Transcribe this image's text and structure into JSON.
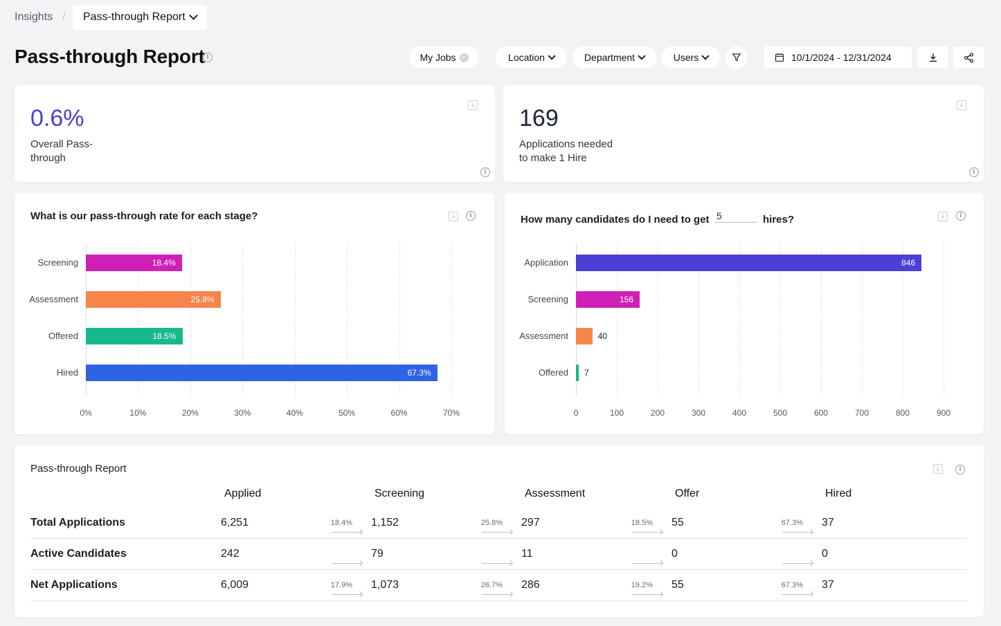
{
  "breadcrumb": {
    "root": "Insights",
    "separator": "/",
    "current": "Pass-through Report"
  },
  "page": {
    "title": "Pass-through Report"
  },
  "filters": {
    "my_jobs": "My Jobs",
    "location": "Location",
    "department": "Department",
    "users": "Users",
    "date_range": "10/1/2024 - 12/31/2024"
  },
  "kpis": [
    {
      "value": "0.6%",
      "label_line1": "Overall Pass-",
      "label_line2": "through",
      "color": "#4a3fd6"
    },
    {
      "value": "169",
      "label_line1": "Applications needed",
      "label_line2": "to make 1 Hire",
      "color": "#1d2433"
    }
  ],
  "chart_left": {
    "title": "What is our pass-through rate for each stage?"
  },
  "chart_right": {
    "title_prefix": "How many candidates do I need to get",
    "hires_value": "5",
    "title_suffix": "hires?"
  },
  "chart_data": [
    {
      "type": "bar",
      "orientation": "horizontal",
      "title": "What is our pass-through rate for each stage?",
      "categories": [
        "Screening",
        "Assessment",
        "Offered",
        "Hired"
      ],
      "values": [
        18.4,
        25.8,
        18.5,
        67.3
      ],
      "value_labels": [
        "18.4%",
        "25.8%",
        "18.5%",
        "67.3%"
      ],
      "colors": [
        "#d01fb6",
        "#f5854a",
        "#17b88c",
        "#2f63e6"
      ],
      "xlim": [
        0,
        70
      ],
      "xticks": [
        "0%",
        "10%",
        "20%",
        "30%",
        "40%",
        "50%",
        "60%",
        "70%"
      ],
      "grid": true
    },
    {
      "type": "bar",
      "orientation": "horizontal",
      "title": "How many candidates do I need to get 5 hires?",
      "categories": [
        "Application",
        "Screening",
        "Assessment",
        "Offered"
      ],
      "values": [
        846,
        156,
        40,
        7
      ],
      "value_labels": [
        "846",
        "156",
        "40",
        "7"
      ],
      "colors": [
        "#4a3fd6",
        "#d01fb6",
        "#f5854a",
        "#17b88c"
      ],
      "xlim": [
        0,
        900
      ],
      "xticks": [
        "0",
        "100",
        "200",
        "300",
        "400",
        "500",
        "600",
        "700",
        "800",
        "900"
      ],
      "grid": true
    }
  ],
  "table": {
    "title": "Pass-through Report",
    "columns": [
      "Applied",
      "Screening",
      "Assessment",
      "Offer",
      "Hired"
    ],
    "rows": [
      {
        "label": "Total Applications",
        "values": [
          "6,251",
          "1,152",
          "297",
          "55",
          "37"
        ],
        "rates": [
          "18.4%",
          "25.8%",
          "18.5%",
          "67.3%"
        ]
      },
      {
        "label": "Active Candidates",
        "values": [
          "242",
          "79",
          "11",
          "0",
          "0"
        ],
        "rates": [
          "",
          "",
          "",
          ""
        ]
      },
      {
        "label": "Net Applications",
        "values": [
          "6,009",
          "1,073",
          "286",
          "55",
          "37"
        ],
        "rates": [
          "17.9%",
          "26.7%",
          "19.2%",
          "67.3%"
        ]
      }
    ]
  }
}
